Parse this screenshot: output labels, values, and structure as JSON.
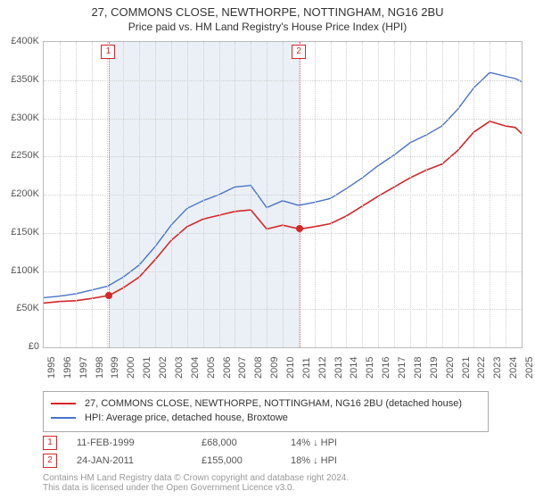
{
  "titles": {
    "line1": "27, COMMONS CLOSE, NEWTHORPE, NOTTINGHAM, NG16 2BU",
    "line2": "Price paid vs. HM Land Registry's House Price Index (HPI)"
  },
  "chart": {
    "type": "line",
    "x": {
      "min": 1995,
      "max": 2025,
      "tick_step": 1
    },
    "y": {
      "min": 0,
      "max": 400000,
      "tick_step": 50000,
      "prefix": "£",
      "format_k": true
    },
    "background_color": "#ffffff",
    "grid_color": "#cfcfcf",
    "axis_color": "#bbbbbb",
    "tick_fontsize": 11,
    "title_fontsize": 13,
    "series": [
      {
        "name": "27, COMMONS CLOSE, NEWTHORPE, NOTTINGHAM, NG16 2BU (detached house)",
        "color": "#d62728",
        "line_width": 1.6,
        "data": [
          [
            1995.0,
            58000
          ],
          [
            1996.0,
            60000
          ],
          [
            1997.0,
            61000
          ],
          [
            1998.0,
            64000
          ],
          [
            1999.11,
            68000
          ],
          [
            2000.0,
            78000
          ],
          [
            2001.0,
            92000
          ],
          [
            2002.0,
            115000
          ],
          [
            2003.0,
            140000
          ],
          [
            2004.0,
            158000
          ],
          [
            2005.0,
            168000
          ],
          [
            2006.0,
            173000
          ],
          [
            2007.0,
            178000
          ],
          [
            2008.0,
            180000
          ],
          [
            2009.0,
            155000
          ],
          [
            2010.0,
            160000
          ],
          [
            2011.07,
            155000
          ],
          [
            2012.0,
            158000
          ],
          [
            2013.0,
            162000
          ],
          [
            2014.0,
            172000
          ],
          [
            2015.0,
            185000
          ],
          [
            2016.0,
            198000
          ],
          [
            2017.0,
            210000
          ],
          [
            2018.0,
            222000
          ],
          [
            2019.0,
            232000
          ],
          [
            2020.0,
            240000
          ],
          [
            2021.0,
            258000
          ],
          [
            2022.0,
            282000
          ],
          [
            2023.0,
            296000
          ],
          [
            2024.0,
            290000
          ],
          [
            2024.6,
            288000
          ],
          [
            2025.0,
            280000
          ]
        ]
      },
      {
        "name": "HPI: Average price, detached house, Broxtowe",
        "color": "#4a74c9",
        "line_width": 1.4,
        "data": [
          [
            1995.0,
            65000
          ],
          [
            1996.0,
            67000
          ],
          [
            1997.0,
            70000
          ],
          [
            1998.0,
            75000
          ],
          [
            1999.0,
            80000
          ],
          [
            2000.0,
            92000
          ],
          [
            2001.0,
            108000
          ],
          [
            2002.0,
            132000
          ],
          [
            2003.0,
            160000
          ],
          [
            2004.0,
            182000
          ],
          [
            2005.0,
            192000
          ],
          [
            2006.0,
            200000
          ],
          [
            2007.0,
            210000
          ],
          [
            2008.0,
            212000
          ],
          [
            2009.0,
            183000
          ],
          [
            2010.0,
            192000
          ],
          [
            2011.0,
            186000
          ],
          [
            2012.0,
            190000
          ],
          [
            2013.0,
            195000
          ],
          [
            2014.0,
            208000
          ],
          [
            2015.0,
            222000
          ],
          [
            2016.0,
            238000
          ],
          [
            2017.0,
            252000
          ],
          [
            2018.0,
            268000
          ],
          [
            2019.0,
            278000
          ],
          [
            2020.0,
            290000
          ],
          [
            2021.0,
            312000
          ],
          [
            2022.0,
            340000
          ],
          [
            2023.0,
            360000
          ],
          [
            2024.0,
            355000
          ],
          [
            2024.6,
            352000
          ],
          [
            2025.0,
            348000
          ]
        ]
      }
    ],
    "shade_band": {
      "x_from": 1999.11,
      "x_to": 2011.07,
      "color": "rgba(180,200,220,0.28)"
    },
    "markers": [
      {
        "label": "1",
        "x": 1999.11,
        "y": 68000,
        "date": "11-FEB-1999",
        "price": "£68,000",
        "hpi_delta": "14% ↓ HPI"
      },
      {
        "label": "2",
        "x": 2011.07,
        "y": 155000,
        "date": "24-JAN-2011",
        "price": "£155,000",
        "hpi_delta": "18% ↓ HPI"
      }
    ],
    "marker_style": {
      "flag_border": "#d62728",
      "flag_text_color": "#d62728",
      "dot_color": "#d62728",
      "dot_size": 8
    }
  },
  "legend": {
    "border_color": "#aaaaaa",
    "fontsize": 11
  },
  "footer": {
    "line1": "Contains HM Land Registry data © Crown copyright and database right 2024.",
    "line2": "This data is licensed under the Open Government Licence v3.0.",
    "color": "#999999",
    "fontsize": 10
  }
}
